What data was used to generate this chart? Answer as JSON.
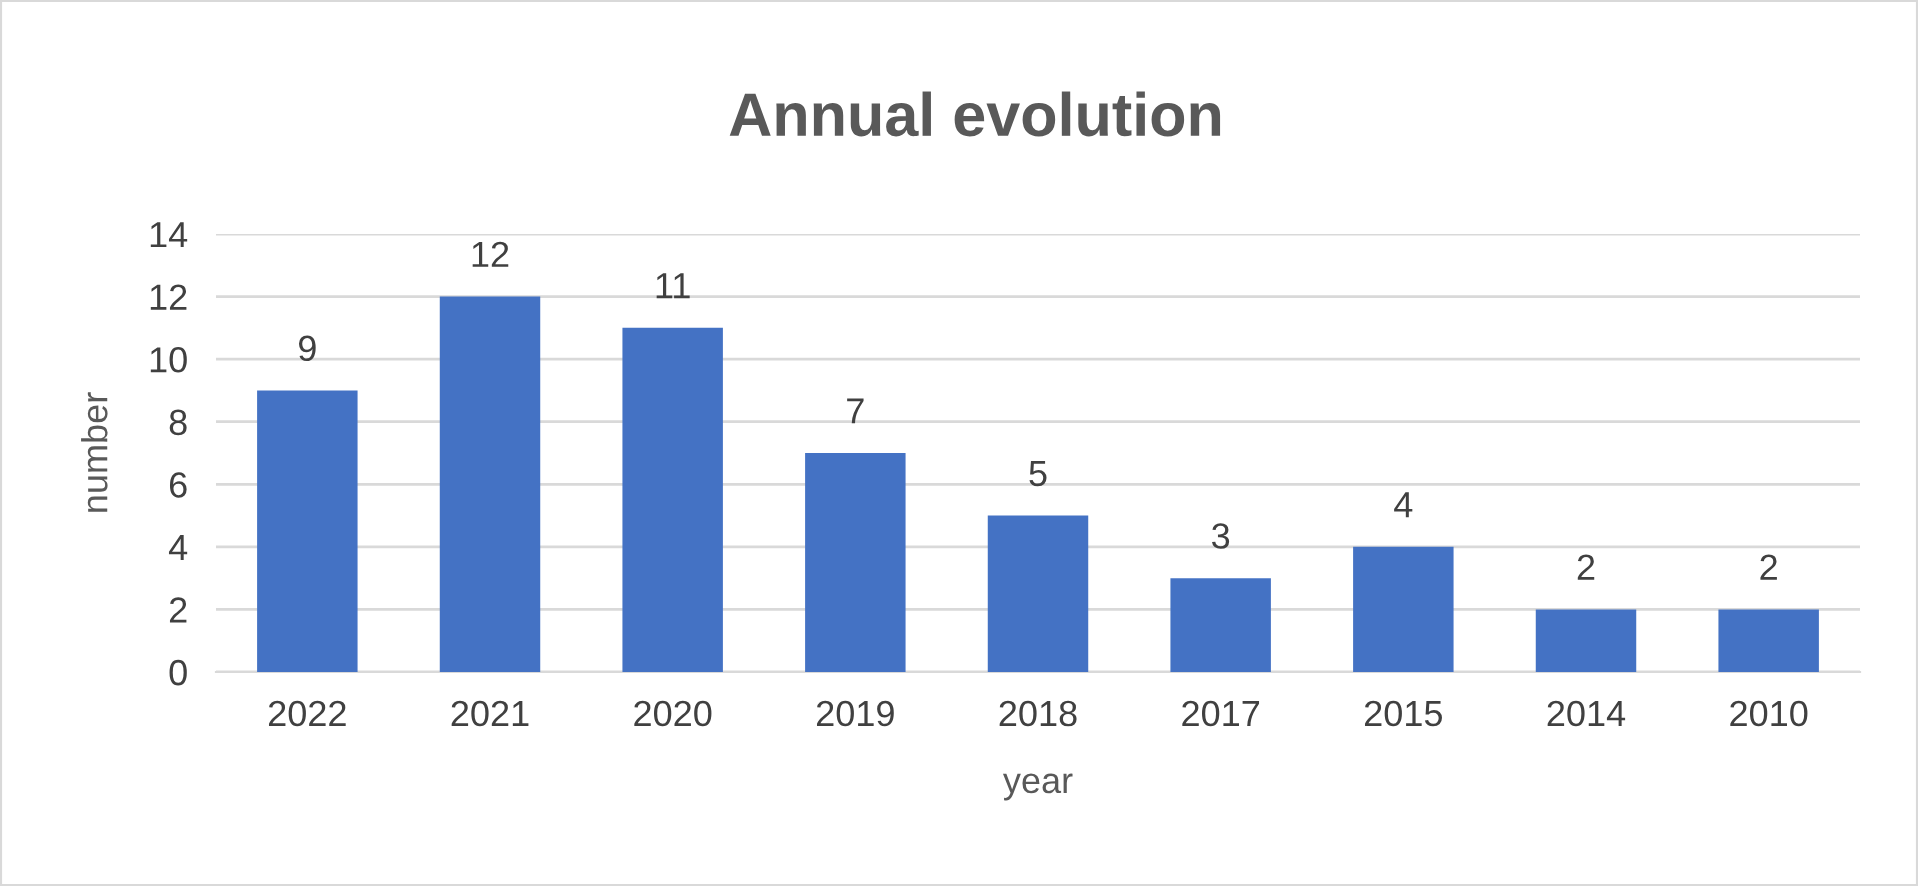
{
  "chart_data": {
    "type": "bar",
    "title": "Annual evolution",
    "xlabel": "year",
    "ylabel": "number",
    "categories": [
      "2022",
      "2021",
      "2020",
      "2019",
      "2018",
      "2017",
      "2015",
      "2014",
      "2010"
    ],
    "values": [
      9,
      12,
      11,
      7,
      5,
      3,
      4,
      2,
      2
    ],
    "color": "#4472c4",
    "ylim": [
      0,
      14
    ],
    "yticks": [
      0,
      2,
      4,
      6,
      8,
      10,
      12,
      14
    ],
    "grid": "y",
    "data_labels": true,
    "legend": false
  }
}
